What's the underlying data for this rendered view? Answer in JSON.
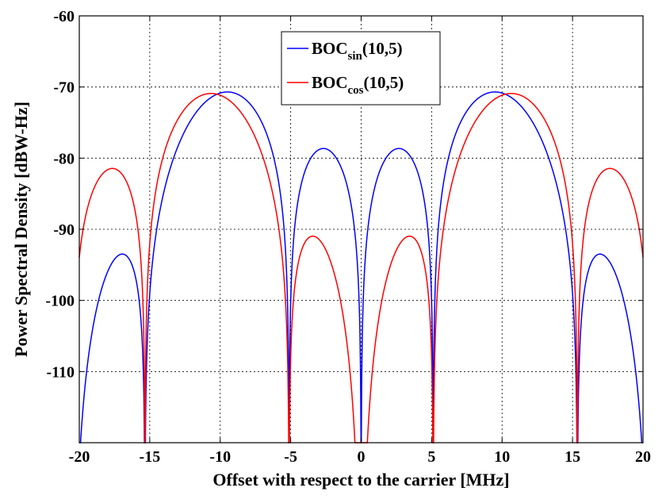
{
  "chart_data": {
    "type": "line",
    "xlabel": "Offset with respect to the carrier [MHz]",
    "ylabel": "Power Spectral Density [dBW-Hz]",
    "xlim": [
      -20,
      20
    ],
    "ylim": [
      -120,
      -60
    ],
    "xticks": [
      -20,
      -15,
      -10,
      -5,
      0,
      5,
      10,
      15,
      20
    ],
    "yticks": [
      -60,
      -70,
      -80,
      -90,
      -100,
      -110
    ],
    "grid": true,
    "legend_position": "top-center",
    "fs_mhz": 10.23,
    "fc_mhz": 5.115,
    "series": [
      {
        "name_main": "BOC",
        "name_sub": "sin",
        "name_suffix": "(10,5)",
        "kind": "sin",
        "color": "#0000ff",
        "peaks": [
          {
            "x": -16.5,
            "y": -93.4
          },
          {
            "x": -9.2,
            "y": -70.6
          },
          {
            "x": -2.6,
            "y": -78.6
          },
          {
            "x": 2.6,
            "y": -78.6
          },
          {
            "x": 9.2,
            "y": -70.6
          },
          {
            "x": 16.5,
            "y": -93.4
          }
        ]
      },
      {
        "name_main": "BOC",
        "name_sub": "cos",
        "name_suffix": "(10,5)",
        "kind": "cos",
        "color": "#ff0000",
        "peaks": [
          {
            "x": -17.2,
            "y": -81.3
          },
          {
            "x": -10.5,
            "y": -70.8
          },
          {
            "x": -3.4,
            "y": -90.8
          },
          {
            "x": 3.4,
            "y": -90.8
          },
          {
            "x": 10.5,
            "y": -70.8
          },
          {
            "x": 17.2,
            "y": -81.3
          }
        ]
      }
    ]
  }
}
